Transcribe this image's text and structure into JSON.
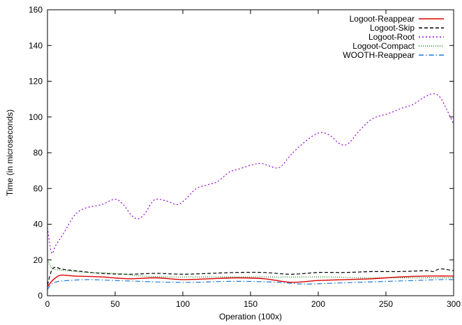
{
  "chart_data": {
    "type": "line",
    "title": "",
    "xlabel": "Operation (100x)",
    "ylabel": "Time (in microseconds)",
    "xlim": [
      0,
      300
    ],
    "ylim": [
      0,
      160
    ],
    "xticks": [
      0,
      50,
      100,
      150,
      200,
      250,
      300
    ],
    "yticks": [
      0,
      20,
      40,
      60,
      80,
      100,
      120,
      140,
      160
    ],
    "grid": false,
    "legend_position": "top-right",
    "series": [
      {
        "name": "Logoot-Reappear",
        "color": "#dd0000",
        "dash": "solid",
        "x": [
          0,
          3,
          6,
          10,
          20,
          40,
          60,
          80,
          100,
          120,
          140,
          160,
          180,
          200,
          220,
          240,
          260,
          280,
          300
        ],
        "y": [
          5,
          8,
          10,
          11.5,
          11,
          10.5,
          9.5,
          10,
          9,
          9.5,
          10,
          9.5,
          7.5,
          8.5,
          9,
          9.5,
          10.5,
          11,
          11
        ]
      },
      {
        "name": "Logoot-Skip",
        "color": "#000000",
        "dash": "dashed",
        "x": [
          0,
          3,
          6,
          10,
          20,
          40,
          60,
          80,
          100,
          120,
          140,
          160,
          180,
          200,
          220,
          240,
          260,
          280,
          285,
          290,
          300
        ],
        "y": [
          6,
          14,
          16,
          15,
          14,
          12.5,
          12,
          12.5,
          12,
          12.5,
          13,
          13,
          12,
          13,
          13,
          13.5,
          13.5,
          14,
          13.5,
          15,
          14
        ]
      },
      {
        "name": "Logoot-Root",
        "color": "#9400d3",
        "dash": "dotted",
        "x": [
          0,
          3,
          6,
          12,
          20,
          28,
          40,
          50,
          56,
          62,
          67,
          72,
          76,
          80,
          88,
          96,
          102,
          110,
          118,
          126,
          134,
          142,
          150,
          158,
          166,
          172,
          180,
          190,
          200,
          208,
          216,
          222,
          230,
          240,
          252,
          262,
          270,
          278,
          285,
          290,
          295,
          300
        ],
        "y": [
          38,
          24,
          28,
          35,
          45,
          49,
          51,
          54,
          51,
          45,
          43,
          46,
          51,
          54,
          53,
          51,
          54,
          60,
          62,
          64,
          69,
          71,
          73,
          74,
          72,
          72,
          79,
          86,
          91,
          90,
          85,
          85,
          92,
          99,
          102,
          105,
          107,
          111,
          113,
          111,
          104,
          96
        ]
      },
      {
        "name": "Logoot-Compact",
        "color": "#0a7a0a",
        "dash": "fine-dotted",
        "x": [
          0,
          2,
          4,
          8,
          15,
          30,
          50,
          70,
          90,
          110,
          130,
          150,
          170,
          190,
          210,
          230,
          250,
          270,
          300
        ],
        "y": [
          20,
          17,
          15,
          14.5,
          14,
          13,
          12.5,
          11,
          10.5,
          10.5,
          10.5,
          10.5,
          10.5,
          10.5,
          10.5,
          10,
          10,
          10,
          10
        ]
      },
      {
        "name": "WOOTH-Reappear",
        "color": "#1f78d4",
        "dash": "dash-dot",
        "x": [
          0,
          3,
          8,
          15,
          30,
          50,
          70,
          90,
          110,
          130,
          150,
          170,
          190,
          210,
          230,
          250,
          270,
          290,
          300
        ],
        "y": [
          3.5,
          6.5,
          8,
          8.5,
          9,
          8.5,
          8,
          7.5,
          7.5,
          8,
          8,
          7.5,
          6.5,
          7,
          7.5,
          8,
          8.5,
          9,
          9
        ]
      }
    ]
  }
}
